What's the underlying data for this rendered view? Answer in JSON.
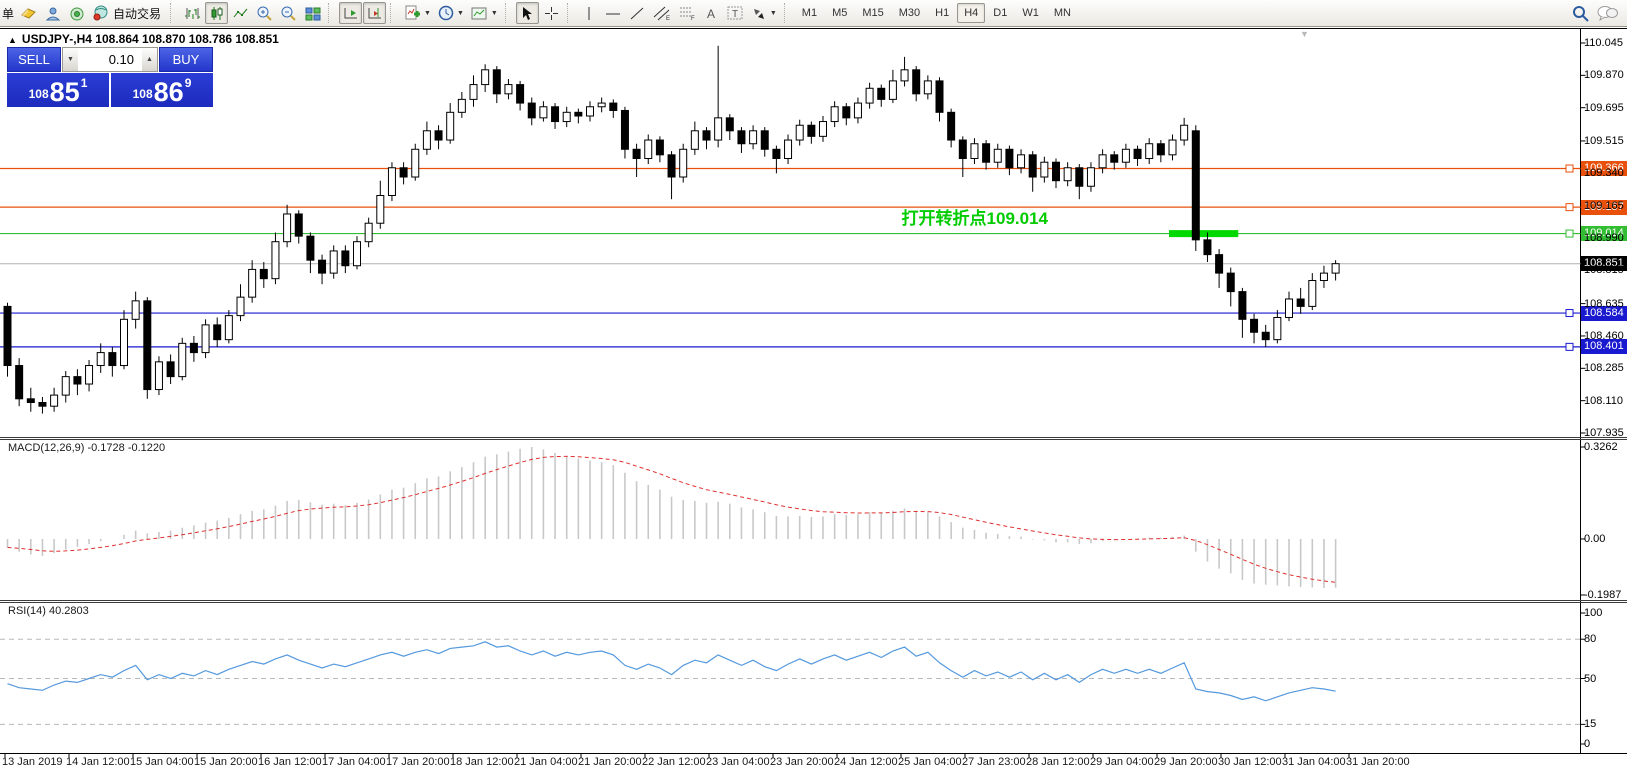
{
  "toolbar": {
    "left_text": "单",
    "autotrade_label": "自动交易",
    "timeframes": [
      "M1",
      "M5",
      "M15",
      "M30",
      "H1",
      "H4",
      "D1",
      "W1",
      "MN"
    ],
    "active_timeframe": "H4",
    "icons": [
      "new-order",
      "profile",
      "signals",
      "autotrading",
      "bar-chart",
      "candlestick",
      "line-chart",
      "zoom-in",
      "zoom-out",
      "tile-windows",
      "shift-end",
      "auto-scroll",
      "indicators-add",
      "periods",
      "templates",
      "cursor",
      "crosshair",
      "vertical-line",
      "horizontal-line",
      "trendline",
      "equidistant-channel",
      "fibonacci",
      "text",
      "text-label",
      "arrows",
      "search",
      "chat"
    ]
  },
  "chart": {
    "title_symbol": "USDJPY-,H4",
    "ohlc": "108.864 108.870 108.786 108.851"
  },
  "one_click": {
    "sell_label": "SELL",
    "buy_label": "BUY",
    "volume": "0.10",
    "sell": {
      "small": "108",
      "big": "85",
      "sup": "1"
    },
    "buy": {
      "small": "108",
      "big": "86",
      "sup": "9"
    }
  },
  "indicators": {
    "macd_label": "MACD(12,26,9) -0.1728 -0.1220",
    "rsi_label": "RSI(14) 40.2803"
  },
  "annotation": {
    "text": "打开转折点109.014",
    "color": "#00cc00"
  },
  "colors": {
    "resistance": "#e8500b",
    "pivot_line": "#33bd33",
    "pivot_highlight": "#00d800",
    "support": "#1919cf",
    "bid_label_bg": "#000000",
    "macd_hist": "#c8c8c8",
    "macd_signal": "#e03030",
    "rsi_line": "#5599dd"
  },
  "chart_data": [
    {
      "type": "candlestick",
      "symbol": "USDJPY-",
      "timeframe": "H4",
      "ohlc_display": {
        "open": "108.864",
        "high": "108.870",
        "low": "108.786",
        "close": "108.851"
      },
      "ylim": [
        107.935,
        110.045
      ],
      "y_ticks": [
        {
          "v": 110.045,
          "label": "110.045"
        },
        {
          "v": 109.87,
          "label": "109.870"
        },
        {
          "v": 109.695,
          "label": "109.695"
        },
        {
          "v": 109.515,
          "label": "109.515"
        },
        {
          "v": 109.34,
          "label": "109.340"
        },
        {
          "v": 109.165,
          "label": "109.165"
        },
        {
          "v": 108.99,
          "label": "108.990"
        },
        {
          "v": 108.815,
          "label": "108.815"
        },
        {
          "v": 108.635,
          "label": "108.635"
        },
        {
          "v": 108.46,
          "label": "108.460"
        },
        {
          "v": 108.285,
          "label": "108.285"
        },
        {
          "v": 108.11,
          "label": "108.110"
        },
        {
          "v": 107.935,
          "label": "107.935"
        }
      ],
      "levels": [
        {
          "price": 109.366,
          "label": "109.366",
          "color": "#e8500b"
        },
        {
          "price": 109.157,
          "label": "109.157",
          "color": "#e8500b"
        },
        {
          "price": 109.014,
          "label": "109.014",
          "color": "#33bd33"
        },
        {
          "price": 108.584,
          "label": "108.584",
          "color": "#1919cf"
        },
        {
          "price": 108.401,
          "label": "108.401",
          "color": "#1919cf"
        }
      ],
      "bid": {
        "price": 108.851,
        "label": "108.851"
      },
      "highlight_segment": {
        "price": 109.014,
        "from_bar": 100,
        "to_bar": 105
      },
      "annotation": {
        "anchor_bar": 77,
        "anchor_price": 109.114
      },
      "time_labels": [
        "13 Jan 2019",
        "14 Jan 12:00",
        "15 Jan 04:00",
        "15 Jan 20:00",
        "16 Jan 12:00",
        "17 Jan 04:00",
        "17 Jan 20:00",
        "18 Jan 12:00",
        "21 Jan 04:00",
        "21 Jan 20:00",
        "22 Jan 12:00",
        "23 Jan 04:00",
        "23 Jan 20:00",
        "24 Jan 12:00",
        "25 Jan 04:00",
        "27 Jan 23:00",
        "28 Jan 12:00",
        "29 Jan 04:00",
        "29 Jan 20:00",
        "30 Jan 12:00",
        "31 Jan 04:00",
        "31 Jan 20:00"
      ],
      "candles": [
        [
          108.62,
          108.64,
          108.24,
          108.3
        ],
        [
          108.3,
          108.34,
          108.08,
          108.12
        ],
        [
          108.12,
          108.18,
          108.05,
          108.1
        ],
        [
          108.1,
          108.13,
          108.04,
          108.08
        ],
        [
          108.08,
          108.18,
          108.05,
          108.14
        ],
        [
          108.14,
          108.27,
          108.1,
          108.24
        ],
        [
          108.24,
          108.28,
          108.14,
          108.2
        ],
        [
          108.2,
          108.33,
          108.16,
          108.3
        ],
        [
          108.3,
          108.42,
          108.26,
          108.37
        ],
        [
          108.37,
          108.4,
          108.24,
          108.3
        ],
        [
          108.3,
          108.6,
          108.28,
          108.55
        ],
        [
          108.55,
          108.7,
          108.5,
          108.65
        ],
        [
          108.65,
          108.67,
          108.12,
          108.17
        ],
        [
          108.17,
          108.35,
          108.14,
          108.32
        ],
        [
          108.32,
          108.36,
          108.2,
          108.24
        ],
        [
          108.24,
          108.45,
          108.22,
          108.42
        ],
        [
          108.42,
          108.46,
          108.32,
          108.37
        ],
        [
          108.37,
          108.55,
          108.34,
          108.52
        ],
        [
          108.52,
          108.56,
          108.4,
          108.44
        ],
        [
          108.44,
          108.6,
          108.42,
          108.57
        ],
        [
          108.57,
          108.74,
          108.54,
          108.67
        ],
        [
          108.67,
          108.87,
          108.64,
          108.82
        ],
        [
          108.82,
          108.86,
          108.72,
          108.77
        ],
        [
          108.77,
          109.02,
          108.74,
          108.97
        ],
        [
          108.97,
          109.17,
          108.94,
          109.12
        ],
        [
          109.12,
          109.14,
          108.96,
          109.0
        ],
        [
          109.0,
          109.02,
          108.8,
          108.87
        ],
        [
          108.87,
          108.9,
          108.74,
          108.8
        ],
        [
          108.8,
          108.95,
          108.77,
          108.92
        ],
        [
          108.92,
          108.95,
          108.8,
          108.84
        ],
        [
          108.84,
          109.0,
          108.82,
          108.97
        ],
        [
          108.97,
          109.1,
          108.94,
          109.07
        ],
        [
          109.07,
          109.3,
          109.04,
          109.22
        ],
        [
          109.22,
          109.4,
          109.19,
          109.37
        ],
        [
          109.37,
          109.4,
          109.28,
          109.32
        ],
        [
          109.32,
          109.5,
          109.3,
          109.47
        ],
        [
          109.47,
          109.62,
          109.44,
          109.57
        ],
        [
          109.57,
          109.6,
          109.47,
          109.52
        ],
        [
          109.52,
          109.72,
          109.5,
          109.67
        ],
        [
          109.67,
          109.78,
          109.64,
          109.74
        ],
        [
          109.74,
          109.87,
          109.7,
          109.82
        ],
        [
          109.82,
          109.93,
          109.78,
          109.9
        ],
        [
          109.9,
          109.92,
          109.72,
          109.77
        ],
        [
          109.77,
          109.85,
          109.74,
          109.82
        ],
        [
          109.82,
          109.84,
          109.68,
          109.72
        ],
        [
          109.72,
          109.75,
          109.6,
          109.64
        ],
        [
          109.64,
          109.73,
          109.62,
          109.7
        ],
        [
          109.7,
          109.72,
          109.58,
          109.62
        ],
        [
          109.62,
          109.7,
          109.59,
          109.67
        ],
        [
          109.67,
          109.69,
          109.61,
          109.65
        ],
        [
          109.65,
          109.73,
          109.62,
          109.7
        ],
        [
          109.7,
          109.75,
          109.67,
          109.72
        ],
        [
          109.72,
          109.74,
          109.64,
          109.68
        ],
        [
          109.68,
          109.7,
          109.42,
          109.47
        ],
        [
          109.47,
          109.5,
          109.32,
          109.42
        ],
        [
          109.42,
          109.55,
          109.39,
          109.52
        ],
        [
          109.52,
          109.54,
          109.4,
          109.44
        ],
        [
          109.44,
          109.46,
          109.2,
          109.32
        ],
        [
          109.32,
          109.5,
          109.29,
          109.47
        ],
        [
          109.47,
          109.62,
          109.44,
          109.57
        ],
        [
          109.57,
          109.59,
          109.47,
          109.52
        ],
        [
          109.52,
          110.03,
          109.48,
          109.64
        ],
        [
          109.64,
          109.66,
          109.52,
          109.57
        ],
        [
          109.57,
          109.59,
          109.45,
          109.5
        ],
        [
          109.5,
          109.6,
          109.47,
          109.57
        ],
        [
          109.57,
          109.59,
          109.43,
          109.47
        ],
        [
          109.47,
          109.49,
          109.34,
          109.42
        ],
        [
          109.42,
          109.55,
          109.39,
          109.52
        ],
        [
          109.52,
          109.63,
          109.49,
          109.6
        ],
        [
          109.6,
          109.62,
          109.5,
          109.54
        ],
        [
          109.54,
          109.65,
          109.51,
          109.62
        ],
        [
          109.62,
          109.73,
          109.59,
          109.7
        ],
        [
          109.7,
          109.72,
          109.6,
          109.64
        ],
        [
          109.64,
          109.75,
          109.61,
          109.72
        ],
        [
          109.72,
          109.83,
          109.69,
          109.8
        ],
        [
          109.8,
          109.82,
          109.7,
          109.74
        ],
        [
          109.74,
          109.9,
          109.72,
          109.84
        ],
        [
          109.84,
          109.97,
          109.81,
          109.9
        ],
        [
          109.9,
          109.92,
          109.73,
          109.77
        ],
        [
          109.77,
          109.87,
          109.74,
          109.84
        ],
        [
          109.84,
          109.86,
          109.62,
          109.67
        ],
        [
          109.67,
          109.69,
          109.48,
          109.52
        ],
        [
          109.52,
          109.54,
          109.32,
          109.42
        ],
        [
          109.42,
          109.53,
          109.39,
          109.5
        ],
        [
          109.5,
          109.52,
          109.36,
          109.4
        ],
        [
          109.4,
          109.5,
          109.37,
          109.47
        ],
        [
          109.47,
          109.49,
          109.33,
          109.37
        ],
        [
          109.37,
          109.47,
          109.34,
          109.44
        ],
        [
          109.44,
          109.46,
          109.24,
          109.32
        ],
        [
          109.32,
          109.43,
          109.29,
          109.4
        ],
        [
          109.4,
          109.42,
          109.26,
          109.3
        ],
        [
          109.3,
          109.4,
          109.27,
          109.37
        ],
        [
          109.37,
          109.39,
          109.2,
          109.27
        ],
        [
          109.27,
          109.4,
          109.24,
          109.37
        ],
        [
          109.37,
          109.47,
          109.34,
          109.44
        ],
        [
          109.44,
          109.46,
          109.36,
          109.4
        ],
        [
          109.4,
          109.5,
          109.37,
          109.47
        ],
        [
          109.47,
          109.49,
          109.38,
          109.42
        ],
        [
          109.42,
          109.53,
          109.39,
          109.5
        ],
        [
          109.5,
          109.52,
          109.4,
          109.44
        ],
        [
          109.44,
          109.55,
          109.41,
          109.52
        ],
        [
          109.52,
          109.64,
          109.49,
          109.6
        ],
        [
          109.57,
          109.6,
          108.92,
          108.98
        ],
        [
          108.98,
          109.02,
          108.86,
          108.9
        ],
        [
          108.9,
          108.93,
          108.72,
          108.8
        ],
        [
          108.8,
          108.83,
          108.62,
          108.7
        ],
        [
          108.7,
          108.72,
          108.45,
          108.55
        ],
        [
          108.55,
          108.58,
          108.42,
          108.48
        ],
        [
          108.48,
          108.52,
          108.4,
          108.44
        ],
        [
          108.44,
          108.6,
          108.42,
          108.56
        ],
        [
          108.56,
          108.7,
          108.54,
          108.66
        ],
        [
          108.66,
          108.72,
          108.58,
          108.62
        ],
        [
          108.62,
          108.8,
          108.6,
          108.76
        ],
        [
          108.76,
          108.84,
          108.72,
          108.8
        ],
        [
          108.8,
          108.87,
          108.76,
          108.851
        ]
      ]
    },
    {
      "type": "bar",
      "name": "MACD(12,26,9)",
      "current_macd": "-0.1728",
      "current_signal": "-0.1220",
      "ylim": [
        -0.1987,
        0.3262
      ],
      "y_ticks": [
        {
          "v": 0.3262,
          "label": "0.3262"
        },
        {
          "v": 0,
          "label": "0.00"
        },
        {
          "v": -0.1987,
          "label": "-0.1987"
        }
      ],
      "values": [
        -0.03,
        -0.045,
        -0.055,
        -0.06,
        -0.05,
        -0.038,
        -0.028,
        -0.018,
        -0.008,
        0.0,
        0.015,
        0.03,
        0.02,
        0.025,
        0.03,
        0.04,
        0.048,
        0.058,
        0.065,
        0.075,
        0.088,
        0.1,
        0.105,
        0.118,
        0.135,
        0.138,
        0.13,
        0.122,
        0.125,
        0.12,
        0.128,
        0.14,
        0.158,
        0.175,
        0.182,
        0.198,
        0.215,
        0.222,
        0.24,
        0.255,
        0.272,
        0.292,
        0.3,
        0.31,
        0.32,
        0.3262,
        0.318,
        0.305,
        0.295,
        0.285,
        0.278,
        0.272,
        0.262,
        0.235,
        0.205,
        0.192,
        0.175,
        0.15,
        0.138,
        0.135,
        0.128,
        0.132,
        0.125,
        0.112,
        0.105,
        0.095,
        0.082,
        0.08,
        0.082,
        0.078,
        0.08,
        0.088,
        0.085,
        0.088,
        0.095,
        0.092,
        0.1,
        0.108,
        0.1,
        0.095,
        0.08,
        0.06,
        0.04,
        0.032,
        0.022,
        0.018,
        0.01,
        0.008,
        -0.002,
        -0.005,
        -0.012,
        -0.012,
        -0.018,
        -0.015,
        -0.008,
        -0.005,
        0.0,
        0.002,
        0.005,
        0.005,
        0.008,
        0.012,
        -0.045,
        -0.08,
        -0.105,
        -0.122,
        -0.145,
        -0.158,
        -0.162,
        -0.165,
        -0.168,
        -0.17,
        -0.172,
        -0.174,
        -0.1728
      ]
    },
    {
      "type": "line",
      "name": "RSI(14)",
      "current": "40.2803",
      "ylim": [
        0,
        100
      ],
      "level_lines": [
        80,
        50,
        15
      ],
      "y_ticks": [
        {
          "v": 100,
          "label": "100"
        },
        {
          "v": 80,
          "label": "80"
        },
        {
          "v": 50,
          "label": "50"
        },
        {
          "v": 15,
          "label": "15"
        },
        {
          "v": 0,
          "label": "0"
        }
      ],
      "values": [
        46,
        43,
        42,
        41,
        45,
        48,
        47,
        50,
        53,
        51,
        56,
        60,
        49,
        53,
        50,
        54,
        52,
        56,
        53,
        57,
        60,
        63,
        61,
        65,
        68,
        64,
        61,
        58,
        61,
        59,
        62,
        65,
        68,
        70,
        67,
        70,
        72,
        69,
        73,
        74,
        75,
        78,
        74,
        75,
        71,
        68,
        71,
        67,
        70,
        68,
        70,
        71,
        68,
        60,
        57,
        61,
        58,
        53,
        60,
        64,
        62,
        68,
        64,
        60,
        64,
        59,
        56,
        61,
        65,
        61,
        65,
        68,
        64,
        67,
        70,
        66,
        71,
        74,
        67,
        70,
        62,
        56,
        51,
        56,
        52,
        55,
        51,
        55,
        49,
        54,
        49,
        53,
        47,
        53,
        57,
        54,
        57,
        54,
        57,
        54,
        58,
        62,
        42,
        40,
        39,
        37,
        34,
        36,
        33,
        36,
        39,
        41,
        43,
        42,
        40.28
      ]
    }
  ]
}
